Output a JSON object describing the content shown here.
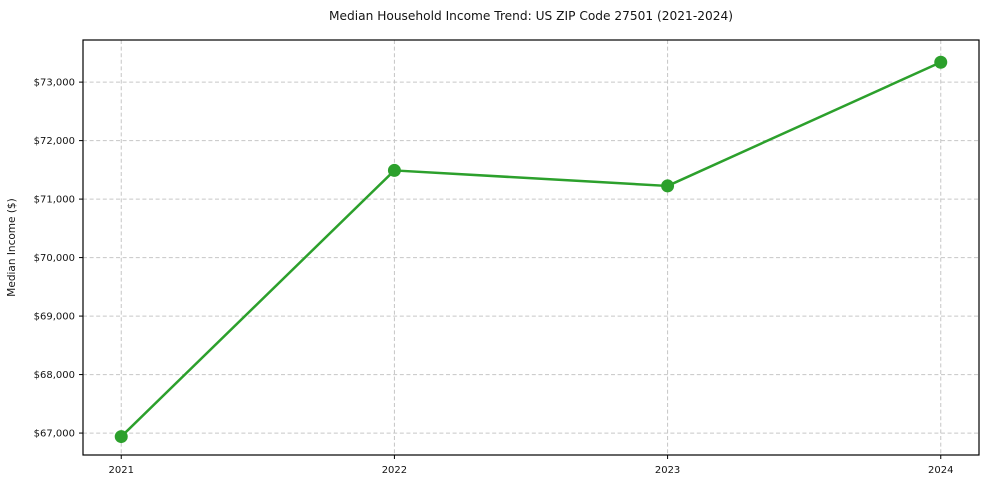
{
  "chart_data": {
    "type": "line",
    "title": "Median Household Income Trend: US ZIP Code 27501 (2021-2024)",
    "xlabel": "",
    "ylabel": "Median Income ($)",
    "x": [
      2021,
      2022,
      2023,
      2024
    ],
    "x_labels": [
      "2021",
      "2022",
      "2023",
      "2024"
    ],
    "series": [
      {
        "name": "Median Household Income",
        "values": [
          66940,
          71490,
          71225,
          73340
        ]
      }
    ],
    "yticks": [
      67000,
      68000,
      69000,
      70000,
      71000,
      72000,
      73000
    ],
    "ytick_labels": [
      "$67,000",
      "$68,000",
      "$69,000",
      "$70,000",
      "$71,000",
      "$72,000",
      "$73,000"
    ],
    "ylim": [
      66625,
      73720
    ],
    "xlim": [
      2020.86,
      2024.14
    ],
    "grid": "both-dashed",
    "legend": "none",
    "line_color": "#2ca02c",
    "marker": "circle",
    "marker_color": "#2ca02c",
    "background_color": "#ffffff",
    "grid_color": "#c6c6c6",
    "spine_color": "#000000",
    "text_color": "#141414"
  }
}
